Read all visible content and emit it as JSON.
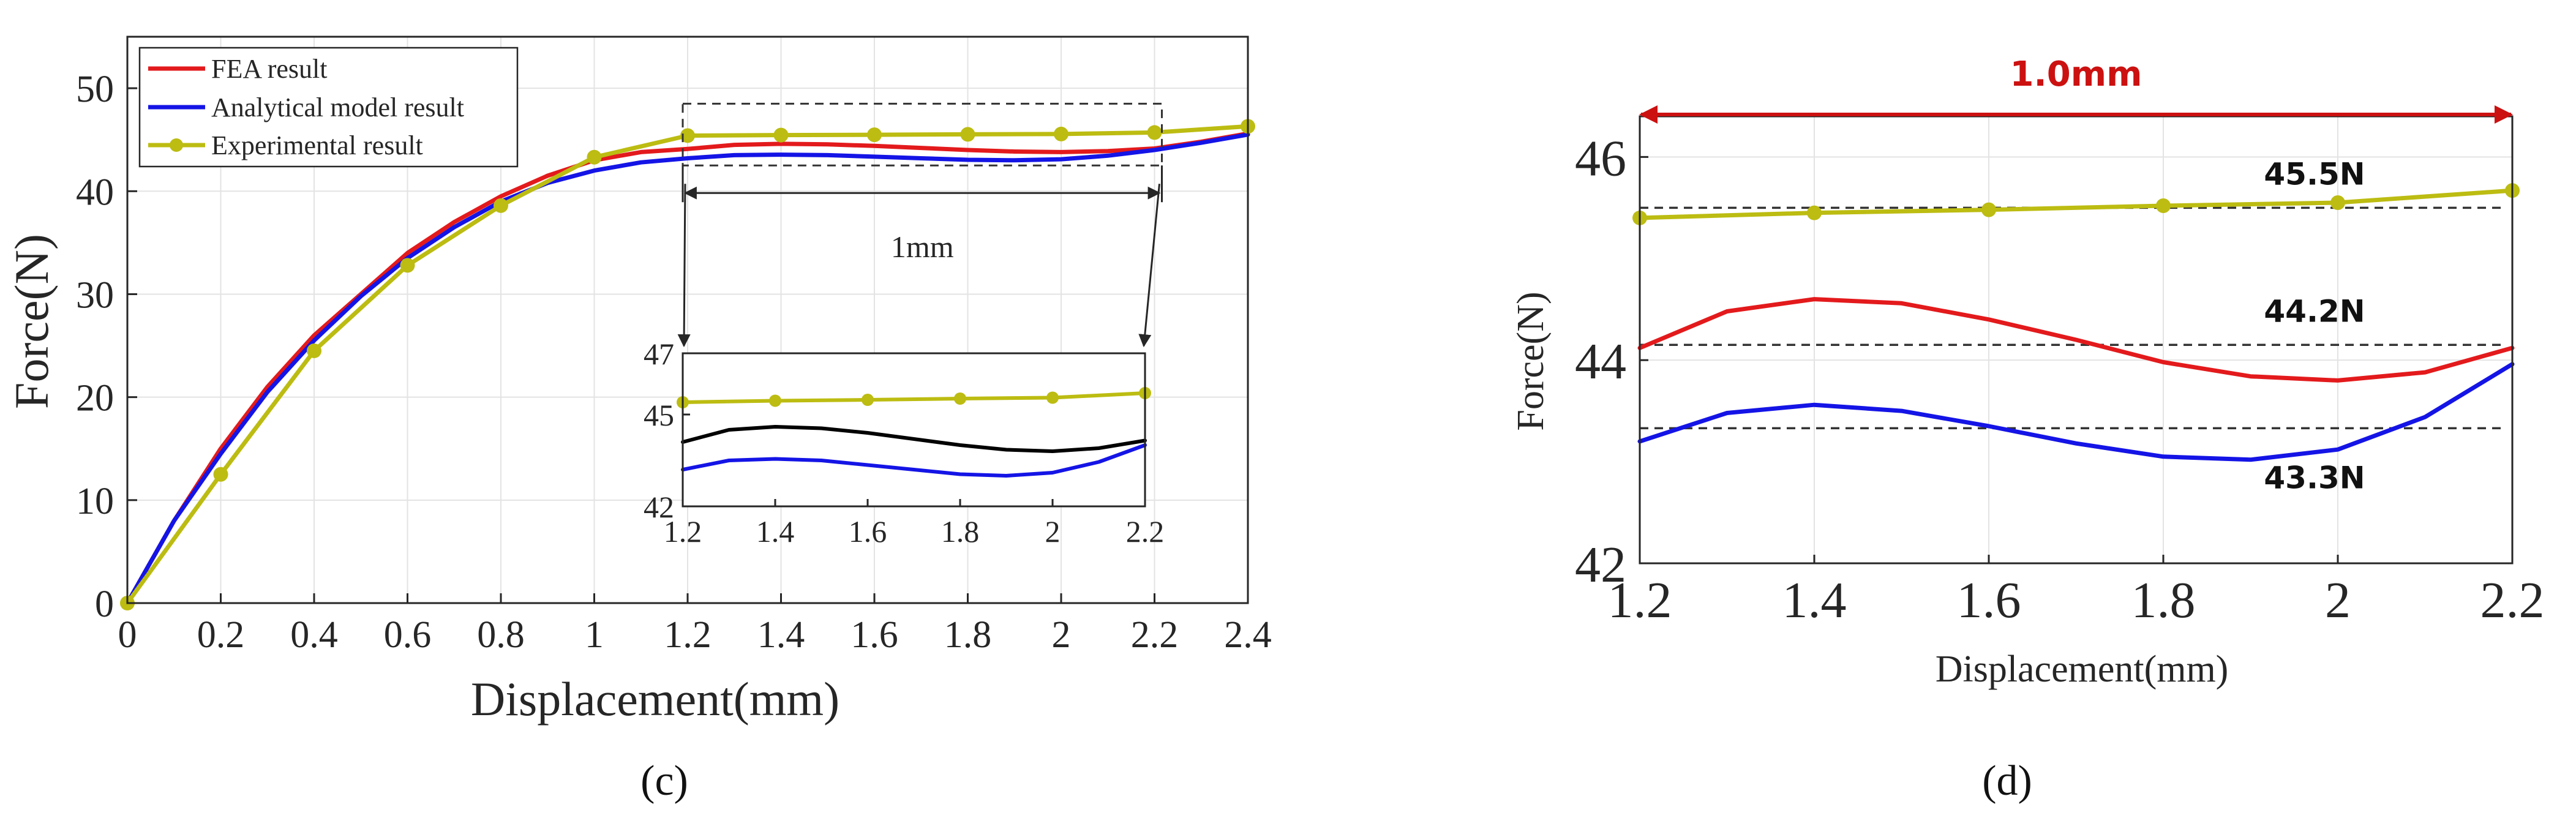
{
  "colors": {
    "fea": "#e31a1c",
    "analytical": "#1414e6",
    "experimental": "#bcbc12",
    "inset_fea": "#000000",
    "span_arrow": "#cc1111",
    "axis": "#262626"
  },
  "chart_data": [
    {
      "id": "c",
      "type": "line",
      "panel_label": "(c)",
      "xlabel": "Displacement(mm)",
      "ylabel": "Force(N)",
      "xlim": [
        0,
        2.4
      ],
      "ylim": [
        0,
        55
      ],
      "xticks": [
        0,
        0.2,
        0.4,
        0.6,
        0.8,
        1,
        1.2,
        1.4,
        1.6,
        1.8,
        2,
        2.2,
        2.4
      ],
      "xtick_labels": [
        "0",
        "0.2",
        "0.4",
        "0.6",
        "0.8",
        "1",
        "1.2",
        "1.4",
        "1.6",
        "1.8",
        "2",
        "2.2",
        "2.4"
      ],
      "yticks": [
        0,
        10,
        20,
        30,
        40,
        50
      ],
      "ytick_labels": [
        "0",
        "10",
        "20",
        "30",
        "40",
        "50"
      ],
      "grid": true,
      "legend_position": "top-left",
      "series": [
        {
          "name": "FEA result",
          "color_key": "fea",
          "markers": false,
          "x": [
            0,
            0.05,
            0.1,
            0.2,
            0.3,
            0.4,
            0.5,
            0.6,
            0.7,
            0.8,
            0.9,
            1.0,
            1.1,
            1.2,
            1.3,
            1.4,
            1.5,
            1.6,
            1.7,
            1.8,
            1.9,
            2.0,
            2.1,
            2.2,
            2.3,
            2.4
          ],
          "y": [
            0,
            4,
            8,
            15,
            21,
            26,
            30,
            34,
            37,
            39.5,
            41.5,
            43,
            43.8,
            44.1,
            44.5,
            44.6,
            44.55,
            44.4,
            44.2,
            44.0,
            43.85,
            43.8,
            43.9,
            44.15,
            44.8,
            45.6
          ]
        },
        {
          "name": "Analytical model result",
          "color_key": "analytical",
          "markers": false,
          "x": [
            0,
            0.05,
            0.1,
            0.2,
            0.3,
            0.4,
            0.5,
            0.6,
            0.7,
            0.8,
            0.9,
            1.0,
            1.1,
            1.2,
            1.3,
            1.4,
            1.5,
            1.6,
            1.7,
            1.8,
            1.9,
            2.0,
            2.1,
            2.2,
            2.3,
            2.4
          ],
          "y": [
            0,
            4,
            8,
            14.5,
            20.5,
            25.5,
            29.8,
            33.5,
            36.5,
            39,
            40.8,
            42,
            42.8,
            43.2,
            43.5,
            43.55,
            43.5,
            43.35,
            43.2,
            43.05,
            43.0,
            43.1,
            43.45,
            44.0,
            44.7,
            45.5
          ]
        },
        {
          "name": "Experimental result",
          "color_key": "experimental",
          "markers": true,
          "x": [
            0,
            0.2,
            0.4,
            0.6,
            0.8,
            1.0,
            1.2,
            1.4,
            1.6,
            1.8,
            2.0,
            2.2,
            2.4
          ],
          "y": [
            0,
            12.5,
            24.5,
            32.8,
            38.6,
            43.3,
            45.4,
            45.45,
            45.48,
            45.52,
            45.55,
            45.7,
            46.3
          ]
        }
      ],
      "zoom_annotation": {
        "span_label": "1mm",
        "x_from": 1.2,
        "x_to": 2.2,
        "y_from": 42.5,
        "y_to": 48.5
      },
      "inset": {
        "xlim": [
          1.2,
          2.2
        ],
        "ylim": [
          42,
          47
        ],
        "xticks": [
          1.2,
          1.4,
          1.6,
          1.8,
          2,
          2.2
        ],
        "xtick_labels": [
          "1.2",
          "1.4",
          "1.6",
          "1.8",
          "2",
          "2.2"
        ],
        "yticks": [
          42,
          45,
          47
        ],
        "ytick_labels": [
          "42",
          "45",
          "47"
        ],
        "series": [
          {
            "name": "FEA result",
            "color_key": "inset_fea",
            "markers": false,
            "x": [
              1.2,
              1.3,
              1.4,
              1.5,
              1.6,
              1.7,
              1.8,
              1.9,
              2.0,
              2.1,
              2.2
            ],
            "y": [
              44.1,
              44.5,
              44.6,
              44.55,
              44.4,
              44.2,
              44.0,
              43.85,
              43.8,
              43.9,
              44.15
            ]
          },
          {
            "name": "Analytical model result",
            "color_key": "analytical",
            "markers": false,
            "x": [
              1.2,
              1.3,
              1.4,
              1.5,
              1.6,
              1.7,
              1.8,
              1.9,
              2.0,
              2.1,
              2.2
            ],
            "y": [
              43.2,
              43.5,
              43.55,
              43.5,
              43.35,
              43.2,
              43.05,
              43.0,
              43.1,
              43.45,
              44.0
            ]
          },
          {
            "name": "Experimental result",
            "color_key": "experimental",
            "markers": true,
            "x": [
              1.2,
              1.4,
              1.6,
              1.8,
              2.0,
              2.2
            ],
            "y": [
              45.4,
              45.45,
              45.48,
              45.52,
              45.55,
              45.7
            ]
          }
        ]
      }
    },
    {
      "id": "d",
      "type": "line",
      "panel_label": "(d)",
      "xlabel": "Displacement(mm)",
      "ylabel": "Force(N)",
      "xlim": [
        1.2,
        2.2
      ],
      "ylim": [
        42,
        46.4
      ],
      "xticks": [
        1.2,
        1.4,
        1.6,
        1.8,
        2,
        2.2
      ],
      "xtick_labels": [
        "1.2",
        "1.4",
        "1.6",
        "1.8",
        "2",
        "2.2"
      ],
      "yticks": [
        42,
        44,
        46
      ],
      "ytick_labels": [
        "42",
        "44",
        "46"
      ],
      "grid": true,
      "series": [
        {
          "name": "Experimental result",
          "color_key": "experimental",
          "markers": true,
          "x": [
            1.2,
            1.4,
            1.6,
            1.8,
            2.0,
            2.2
          ],
          "y": [
            45.4,
            45.45,
            45.48,
            45.52,
            45.55,
            45.67
          ]
        },
        {
          "name": "FEA result",
          "color_key": "fea",
          "markers": false,
          "x": [
            1.2,
            1.3,
            1.4,
            1.5,
            1.6,
            1.7,
            1.8,
            1.9,
            2.0,
            2.1,
            2.2
          ],
          "y": [
            44.12,
            44.48,
            44.6,
            44.56,
            44.4,
            44.2,
            43.98,
            43.84,
            43.8,
            43.88,
            44.12
          ]
        },
        {
          "name": "Analytical model result",
          "color_key": "analytical",
          "markers": false,
          "x": [
            1.2,
            1.3,
            1.4,
            1.5,
            1.6,
            1.7,
            1.8,
            1.9,
            2.0,
            2.1,
            2.2
          ],
          "y": [
            43.2,
            43.48,
            43.56,
            43.5,
            43.35,
            43.18,
            43.05,
            43.02,
            43.12,
            43.44,
            43.96
          ]
        }
      ],
      "reference_lines": [
        {
          "y": 45.5,
          "label": "45.5N"
        },
        {
          "y": 44.15,
          "label": "44.2N"
        },
        {
          "y": 43.33,
          "label": "43.3N"
        }
      ],
      "span_annotation": {
        "label": "1.0mm",
        "x_from": 1.2,
        "x_to": 2.2
      }
    }
  ]
}
